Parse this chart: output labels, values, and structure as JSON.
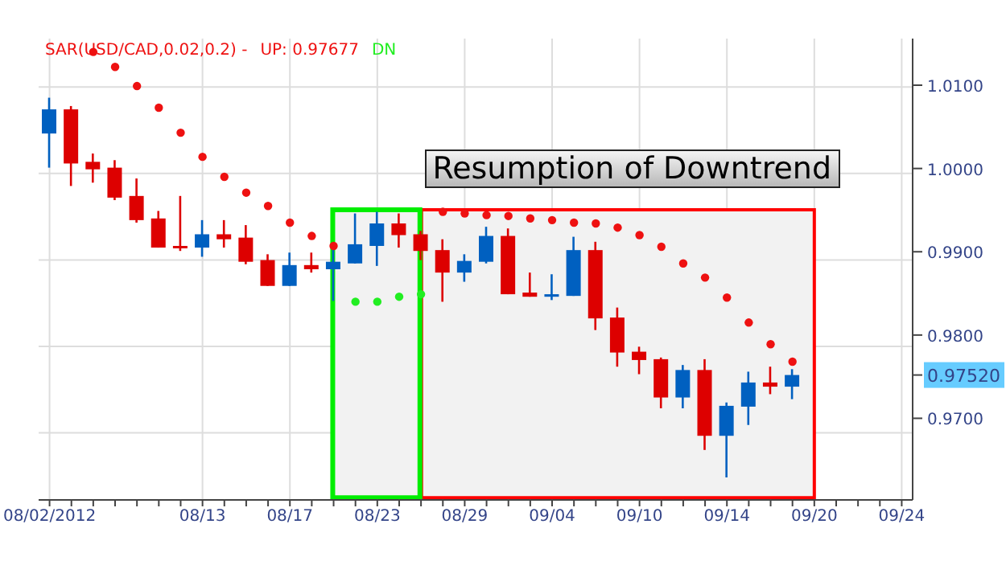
{
  "chart_data": {
    "type": "candlestick",
    "categories": [
      "08/02/2012",
      null,
      null,
      null,
      null,
      null,
      null,
      "08/13",
      null,
      null,
      null,
      "08/17",
      null,
      null,
      null,
      "08/23",
      null,
      null,
      null,
      "08/29",
      null,
      null,
      null,
      "09/04",
      null,
      null,
      null,
      "09/10",
      null,
      null,
      null,
      "09/14",
      null,
      null,
      null,
      "09/20",
      null,
      null,
      null,
      "09/24"
    ],
    "ohlc": [
      [
        1.0042,
        1.0085,
        1.0001,
        1.0071
      ],
      [
        1.0071,
        1.0075,
        0.9979,
        1.0006
      ],
      [
        1.0008,
        1.0018,
        0.9983,
        0.9999
      ],
      [
        1.0001,
        1.001,
        0.9962,
        0.9965
      ],
      [
        0.9967,
        0.9988,
        0.9935,
        0.9938
      ],
      [
        0.994,
        0.9949,
        0.9905,
        0.9905
      ],
      [
        0.9907,
        0.9967,
        0.9901,
        0.9905
      ],
      [
        0.9905,
        0.9938,
        0.9894,
        0.9921
      ],
      [
        0.9921,
        0.9938,
        0.9905,
        0.9915
      ],
      [
        0.9917,
        0.9932,
        0.9885,
        0.9888
      ],
      [
        0.989,
        0.9897,
        0.9859,
        0.9859
      ],
      [
        0.9859,
        0.9899,
        0.9859,
        0.9884
      ],
      [
        0.9884,
        0.9899,
        0.9875,
        0.9879
      ],
      [
        0.9879,
        0.9904,
        0.9841,
        0.9888
      ],
      [
        0.9886,
        0.9946,
        0.9886,
        0.9909
      ],
      [
        0.9907,
        0.9948,
        0.9883,
        0.9934
      ],
      [
        0.9934,
        0.9946,
        0.9905,
        0.992
      ],
      [
        0.9921,
        0.9925,
        0.989,
        0.9901
      ],
      [
        0.9902,
        0.9915,
        0.984,
        0.9875
      ],
      [
        0.9875,
        0.9897,
        0.9864,
        0.9889
      ],
      [
        0.9888,
        0.993,
        0.9886,
        0.9919
      ],
      [
        0.9919,
        0.9928,
        0.9849,
        0.9849
      ],
      [
        0.9851,
        0.9875,
        0.9846,
        0.9846
      ],
      [
        0.9846,
        0.9873,
        0.9842,
        0.9849
      ],
      [
        0.9847,
        0.9918,
        0.9847,
        0.9902
      ],
      [
        0.9902,
        0.9912,
        0.9806,
        0.982
      ],
      [
        0.9821,
        0.9833,
        0.9762,
        0.9779
      ],
      [
        0.978,
        0.9786,
        0.9753,
        0.977
      ],
      [
        0.9771,
        0.9773,
        0.9712,
        0.9725
      ],
      [
        0.9725,
        0.9764,
        0.9712,
        0.9758
      ],
      [
        0.9758,
        0.9771,
        0.9662,
        0.9679
      ],
      [
        0.9679,
        0.9719,
        0.9629,
        0.9715
      ],
      [
        0.9714,
        0.9756,
        0.9692,
        0.9743
      ],
      [
        0.9743,
        0.9762,
        0.9729,
        0.9738
      ],
      [
        0.9738,
        0.9759,
        0.9723,
        0.9752
      ],
      null,
      null,
      null,
      null,
      null
    ],
    "colors": [
      "#0060c0",
      "#dd0000",
      "#dd0000",
      "#dd0000",
      "#dd0000",
      "#dd0000",
      "#dd0000",
      "#0060c0",
      "#dd0000",
      "#dd0000",
      "#dd0000",
      "#0060c0",
      "#dd0000",
      "#0060c0",
      "#0060c0",
      "#0060c0",
      "#dd0000",
      "#dd0000",
      "#dd0000",
      "#0060c0",
      "#0060c0",
      "#dd0000",
      "#dd0000",
      "#0060c0",
      "#0060c0",
      "#dd0000",
      "#dd0000",
      "#dd0000",
      "#dd0000",
      "#0060c0",
      "#dd0000",
      "#0060c0",
      "#0060c0",
      "#dd0000",
      "#0060c0",
      null,
      null,
      null,
      null,
      null
    ],
    "series": [
      {
        "name": "UP: 0.97677",
        "type": "scatter",
        "color": "#ee1111",
        "values": [
          null,
          null,
          1.014,
          1.0122,
          1.0099,
          1.0073,
          1.0043,
          1.0014,
          0.999,
          0.9971,
          0.9955,
          0.9935,
          0.9919,
          0.9907,
          null,
          null,
          null,
          null,
          0.9948,
          0.9946,
          0.9944,
          0.9943,
          0.994,
          0.9938,
          0.9935,
          0.9934,
          0.9929,
          0.992,
          0.9906,
          0.9886,
          0.9869,
          0.9845,
          0.9815,
          0.9789,
          0.9768,
          null,
          null,
          null,
          null,
          null
        ]
      },
      {
        "name": "DN",
        "type": "scatter",
        "color": "#22ee22",
        "values": [
          null,
          null,
          null,
          null,
          null,
          null,
          null,
          null,
          null,
          null,
          null,
          null,
          null,
          null,
          0.984,
          0.984,
          0.9846,
          0.9849,
          null,
          null,
          null,
          null,
          null,
          null,
          null,
          null,
          null,
          null,
          null,
          null,
          null,
          null,
          null,
          null,
          null,
          null,
          null,
          null,
          null,
          null
        ]
      }
    ],
    "legend_title": "SAR(USD/CAD,0.02,0.2) -",
    "legend": "top left",
    "marker": "circle",
    "ylim": [
      0.9602,
      1.0156
    ],
    "yticks": [
      {
        "value": 0.97,
        "label": "0.9700"
      },
      {
        "value": 0.9752,
        "label": "0.97520"
      },
      {
        "value": 0.98,
        "label": "0.9800"
      },
      {
        "value": 0.99,
        "label": "0.9900"
      },
      {
        "value": 1.0,
        "label": "1.0000"
      },
      {
        "value": 1.01,
        "label": "1.0100"
      }
    ],
    "grid": true,
    "annotations": [
      "Resumption of Downtrend"
    ]
  }
}
